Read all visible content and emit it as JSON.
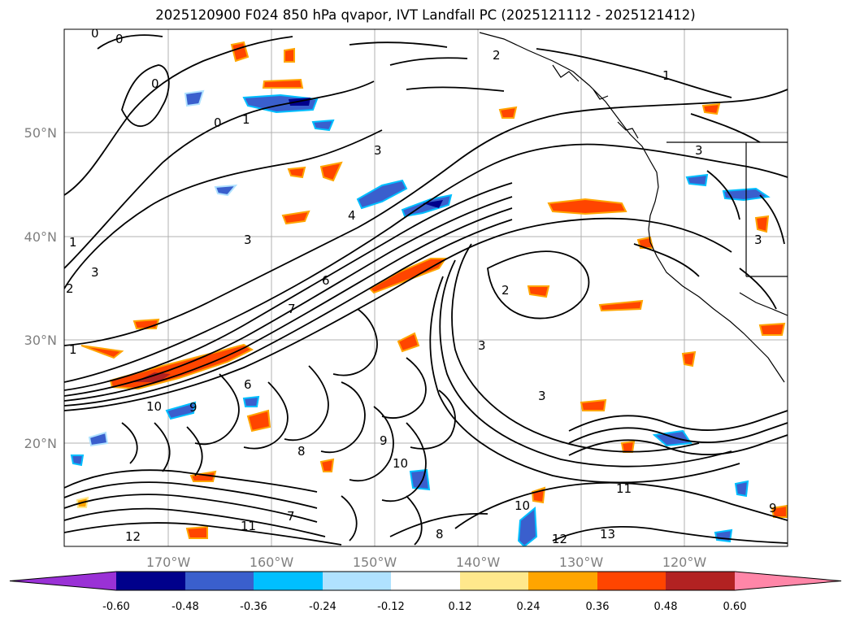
{
  "title": "2025120900 F024 850 hPa qvapor, IVT Landfall PC (2025121112 - 2025121412)",
  "map": {
    "lat_labels": [
      "50°N",
      "40°N",
      "30°N",
      "20°N"
    ],
    "lon_labels": [
      "170°W",
      "160°W",
      "150°W",
      "140°W",
      "130°W",
      "120°W"
    ],
    "contour_labels": [
      "0",
      "0",
      "0",
      "0",
      "1",
      "1",
      "1",
      "1",
      "2",
      "2",
      "2",
      "3",
      "3",
      "3",
      "3",
      "3",
      "3",
      "3",
      "4",
      "6",
      "6",
      "7",
      "7",
      "8",
      "8",
      "9",
      "9",
      "9",
      "10",
      "10",
      "10",
      "11",
      "11",
      "12",
      "12",
      "13"
    ]
  },
  "colorbar": {
    "ticks": [
      "-0.60",
      "-0.48",
      "-0.36",
      "-0.24",
      "-0.12",
      "0.12",
      "0.24",
      "0.36",
      "0.48",
      "0.60"
    ],
    "colors": [
      "#9a31d6",
      "#00008b",
      "#3a5fcd",
      "#00bfff",
      "#b0e2ff",
      "#ffffff",
      "#ffe88c",
      "#ffa500",
      "#ff4500",
      "#b22222",
      "#ff86a8"
    ]
  }
}
